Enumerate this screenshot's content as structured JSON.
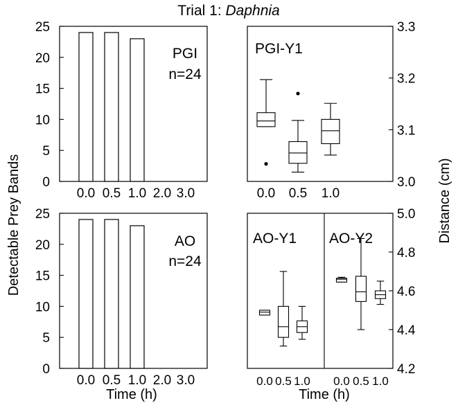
{
  "figure": {
    "title_prefix": "Trial 1: ",
    "title_italic": "Daphnia",
    "left_ylabel": "Detectable Prey Bands",
    "right_ylabel": "Distance (cm)",
    "left_xlabel": "Time (h)",
    "right_xlabel": "Time (h)"
  },
  "chart_data": [
    {
      "id": "pgi-bands",
      "type": "bar",
      "label_line1": "PGI",
      "label_line2": "n=24",
      "categories": [
        "0.0",
        "0.5",
        "1.0",
        "2.0",
        "3.0"
      ],
      "values": [
        24,
        24,
        23,
        0,
        0
      ],
      "ylim": [
        0,
        25
      ],
      "yticks": [
        0,
        5,
        10,
        15,
        20,
        25
      ]
    },
    {
      "id": "ao-bands",
      "type": "bar",
      "label_line1": "AO",
      "label_line2": "n=24",
      "categories": [
        "0.0",
        "0.5",
        "1.0",
        "2.0",
        "3.0"
      ],
      "values": [
        24,
        24,
        23,
        0,
        0
      ],
      "ylim": [
        0,
        25
      ],
      "yticks": [
        0,
        5,
        10,
        15,
        20,
        25
      ]
    },
    {
      "id": "pgi-y1",
      "type": "box",
      "label": "PGI-Y1",
      "categories": [
        "0.0",
        "0.5",
        "1.0"
      ],
      "ylim": [
        3.0,
        3.3
      ],
      "yticks": [
        "3.0",
        "3.1",
        "3.2",
        "3.3"
      ],
      "boxes": [
        {
          "whisker_low": 3.106,
          "q1": 3.106,
          "median": 3.117,
          "q3": 3.133,
          "whisker_high": 3.197,
          "outliers": [
            3.034
          ]
        },
        {
          "whisker_low": 3.018,
          "q1": 3.035,
          "median": 3.055,
          "q3": 3.077,
          "whisker_high": 3.118,
          "outliers": [
            3.17
          ]
        },
        {
          "whisker_low": 3.051,
          "q1": 3.073,
          "median": 3.098,
          "q3": 3.12,
          "whisker_high": 3.151,
          "outliers": []
        }
      ]
    },
    {
      "id": "ao-y1-y2",
      "type": "box",
      "panels": [
        {
          "label": "AO-Y1",
          "categories": [
            "0.0",
            "0.5",
            "1.0"
          ],
          "boxes": [
            {
              "whisker_low": 4.475,
              "q1": 4.475,
              "median": 4.49,
              "q3": 4.5,
              "whisker_high": 4.5,
              "outliers": []
            },
            {
              "whisker_low": 4.315,
              "q1": 4.36,
              "median": 4.415,
              "q3": 4.52,
              "whisker_high": 4.7,
              "outliers": []
            },
            {
              "whisker_low": 4.35,
              "q1": 4.385,
              "median": 4.415,
              "q3": 4.445,
              "whisker_high": 4.52,
              "outliers": []
            }
          ]
        },
        {
          "label": "AO-Y2",
          "categories": [
            "0.0",
            "0.5",
            "1.0"
          ],
          "boxes": [
            {
              "whisker_low": 4.645,
              "q1": 4.645,
              "median": 4.66,
              "q3": 4.665,
              "whisker_high": 4.67,
              "outliers": []
            },
            {
              "whisker_low": 4.4,
              "q1": 4.545,
              "median": 4.595,
              "q3": 4.675,
              "whisker_high": 4.87,
              "outliers": []
            },
            {
              "whisker_low": 4.53,
              "q1": 4.56,
              "median": 4.58,
              "q3": 4.6,
              "whisker_high": 4.65,
              "outliers": []
            }
          ]
        }
      ],
      "ylim": [
        4.2,
        5.0
      ],
      "yticks": [
        "4.2",
        "4.4",
        "4.6",
        "4.8",
        "5.0"
      ]
    }
  ]
}
